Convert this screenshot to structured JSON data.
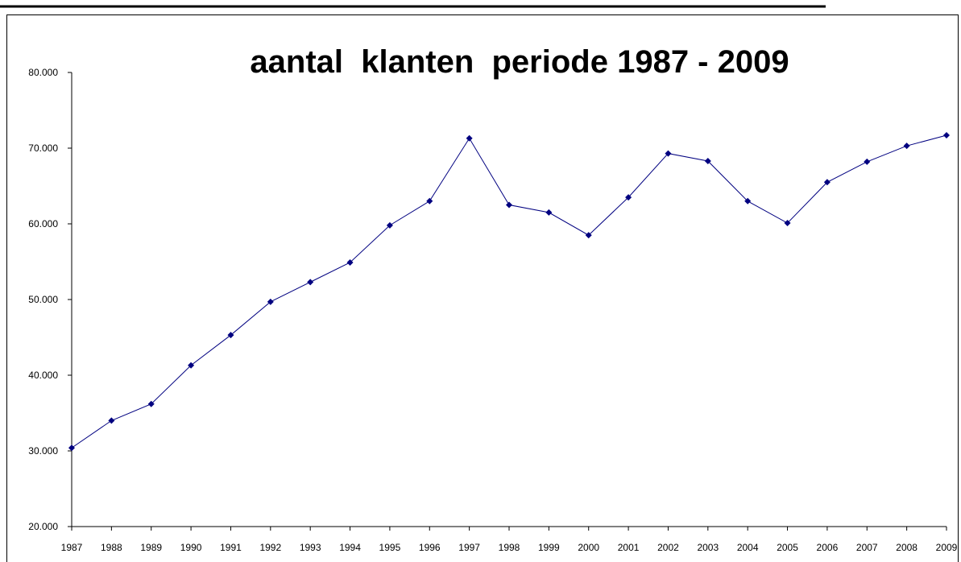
{
  "chart_data": {
    "type": "line",
    "title": "aantal  klanten  periode 1987 - 2009",
    "categories": [
      "1987",
      "1988",
      "1989",
      "1990",
      "1991",
      "1992",
      "1993",
      "1994",
      "1995",
      "1996",
      "1997",
      "1998",
      "1999",
      "2000",
      "2001",
      "2002",
      "2003",
      "2004",
      "2005",
      "2006",
      "2007",
      "2008",
      "2009"
    ],
    "series": [
      {
        "name": "aantal klanten",
        "color": "#000080",
        "values": [
          30400,
          34000,
          36200,
          41300,
          45300,
          49700,
          52300,
          54900,
          59800,
          63000,
          71300,
          62500,
          61500,
          58500,
          63500,
          69300,
          68300,
          63000,
          60100,
          65500,
          68200,
          70300,
          71700
        ]
      }
    ],
    "ylim": [
      20000,
      80000
    ],
    "yticks": [
      {
        "value": 20000,
        "label": "20.000"
      },
      {
        "value": 30000,
        "label": "30.000"
      },
      {
        "value": 40000,
        "label": "40.000"
      },
      {
        "value": 50000,
        "label": "50.000"
      },
      {
        "value": 60000,
        "label": "60.000"
      },
      {
        "value": 70000,
        "label": "70.000"
      },
      {
        "value": 80000,
        "label": "80.000"
      }
    ],
    "grid": false
  }
}
